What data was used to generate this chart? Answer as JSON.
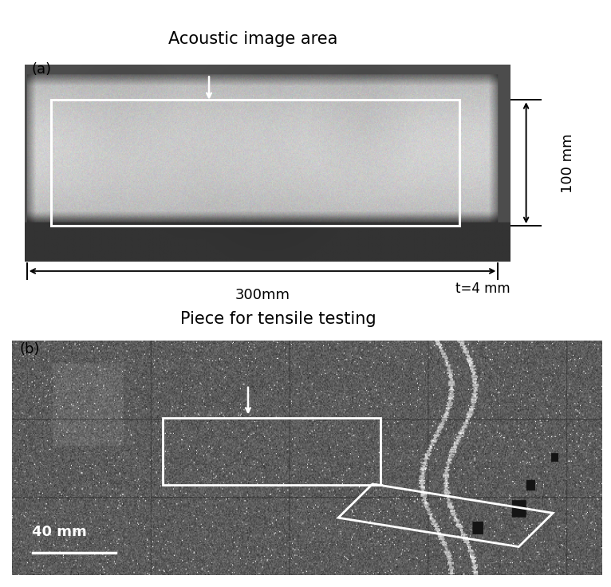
{
  "title_a": "Acoustic image area",
  "title_b": "Piece for tensile testing",
  "label_a": "(a)",
  "label_b": "(b)",
  "dim_300mm": "300mm",
  "dim_100mm": "100 mm",
  "dim_t": "t=4 mm",
  "dim_40mm": "40 mm",
  "bg_color": "#ffffff",
  "title_fontsize": 15,
  "label_fontsize": 13,
  "annot_fontsize": 13,
  "fig_width": 7.66,
  "fig_height": 7.36
}
